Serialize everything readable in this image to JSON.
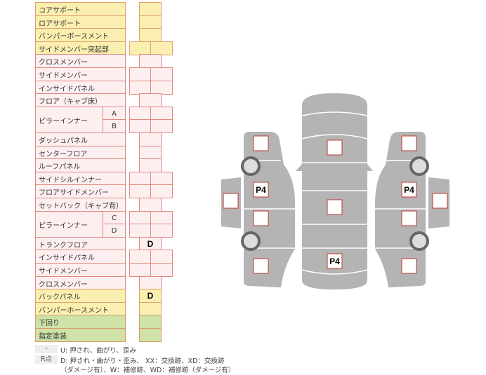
{
  "rows": [
    {
      "label": "コアサポート",
      "color": "yellow",
      "cells": "single",
      "values": [
        ""
      ]
    },
    {
      "label": "ロアサポート",
      "color": "yellow",
      "cells": "single",
      "values": [
        ""
      ]
    },
    {
      "label": "バンパーボースメント",
      "color": "yellow",
      "cells": "single",
      "values": [
        ""
      ]
    },
    {
      "label": "サイドメンバー突起部",
      "color": "yellow",
      "cells": "double",
      "values": [
        "",
        ""
      ]
    },
    {
      "label": "クロスメンバー",
      "color": "pink",
      "cells": "single",
      "values": [
        ""
      ]
    },
    {
      "label": "サイドメンバー",
      "color": "pink",
      "cells": "double",
      "values": [
        "",
        ""
      ]
    },
    {
      "label": "インサイドパネル",
      "color": "pink",
      "cells": "double",
      "values": [
        "",
        ""
      ]
    },
    {
      "label": "フロア（キャブ床）",
      "color": "pink",
      "cells": "single",
      "values": [
        ""
      ]
    },
    {
      "label": "ピラーインナー",
      "color": "pink",
      "cells": "double",
      "sub": [
        "A",
        "B"
      ],
      "values": [
        "",
        "",
        "",
        ""
      ]
    },
    {
      "label": "ダッシュパネル",
      "color": "pink",
      "cells": "single",
      "values": [
        ""
      ]
    },
    {
      "label": "センターフロア",
      "color": "pink",
      "cells": "single",
      "values": [
        ""
      ]
    },
    {
      "label": "ルーフパネル",
      "color": "pink",
      "cells": "single",
      "values": [
        ""
      ]
    },
    {
      "label": "サイドシルインナー",
      "color": "pink",
      "cells": "double",
      "values": [
        "",
        ""
      ]
    },
    {
      "label": "フロアサイドメンバー",
      "color": "pink",
      "cells": "double",
      "values": [
        "",
        ""
      ]
    },
    {
      "label": "セットバック（キャブ背）",
      "color": "pink",
      "cells": "single",
      "values": [
        ""
      ]
    },
    {
      "label": "ピラーインナー",
      "color": "pink",
      "cells": "double",
      "sub": [
        "C",
        "D"
      ],
      "values": [
        "",
        "",
        "",
        ""
      ]
    },
    {
      "label": "トランクフロア",
      "color": "pink",
      "cells": "single",
      "values": [
        "D"
      ]
    },
    {
      "label": "インサイドパネル",
      "color": "pink",
      "cells": "double",
      "values": [
        "",
        ""
      ]
    },
    {
      "label": "サイドメンバー",
      "color": "pink",
      "cells": "double",
      "values": [
        "",
        ""
      ]
    },
    {
      "label": "クロスメンバー",
      "color": "pink",
      "cells": "single",
      "values": [
        ""
      ]
    },
    {
      "label": "バックパネル",
      "color": "yellow",
      "cells": "single",
      "values": [
        "D"
      ]
    },
    {
      "label": "バンパーホースメント",
      "color": "yellow",
      "cells": "single",
      "values": [
        ""
      ]
    },
    {
      "label": "下回り",
      "color": "green",
      "cells": "single",
      "values": [
        ""
      ]
    },
    {
      "label": "指定塗装",
      "color": "green",
      "cells": "single",
      "values": [
        ""
      ]
    }
  ],
  "legend": {
    "key1": "-",
    "text1": "U: 押され、曲がり、歪み",
    "key2": "R点",
    "text2a": "D: 押され・曲がり・歪み、 XX：交換跡、XD：交換跡",
    "text2b": "（ダメージ有）、W：補修跡、WD：補修跡（ダメージ有）"
  },
  "diagram": {
    "marks": {
      "left_front": "",
      "left_mid": "P4",
      "left_rear_door": "",
      "left_rear": "",
      "left_door": "",
      "center_hood": "",
      "center_roof": "",
      "center_trunk": "P4",
      "right_front": "",
      "right_mid": "P4",
      "right_rear_door": "",
      "right_rear": "",
      "right_door": ""
    },
    "body_color": "#b4b4b4",
    "mark_border_color": "#c0392b"
  }
}
